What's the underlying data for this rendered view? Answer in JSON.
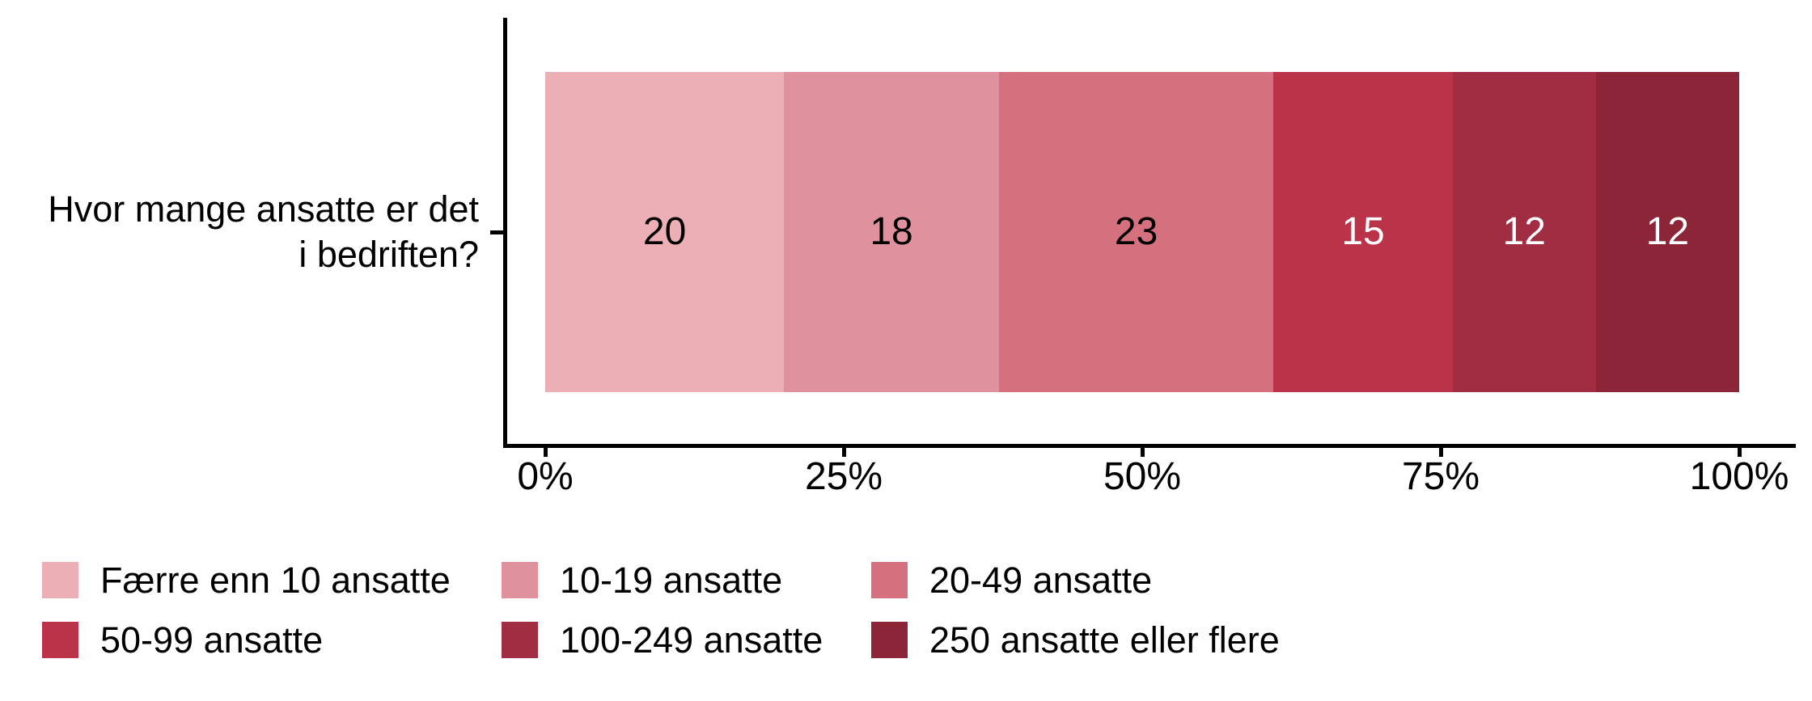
{
  "chart_data": {
    "type": "bar",
    "orientation": "horizontal",
    "stacked": true,
    "title": "",
    "xlabel": "",
    "ylabel": "",
    "grid": false,
    "background": "#FFFFFF",
    "axis_color": "#000000",
    "legend_position": "bottom-left",
    "categories": [
      "Hvor mange ansatte er det i bedriften?"
    ],
    "series": [
      {
        "name": "Færre enn 10 ansatte",
        "values": [
          20
        ],
        "color": "#ECAFB6",
        "label_color": "#000000"
      },
      {
        "name": "10-19 ansatte",
        "values": [
          18
        ],
        "color": "#DF929E",
        "label_color": "#000000"
      },
      {
        "name": "20-49 ansatte",
        "values": [
          23
        ],
        "color": "#D5707E",
        "label_color": "#000000"
      },
      {
        "name": "50-99 ansatte",
        "values": [
          15
        ],
        "color": "#BB3349",
        "label_color": "#FFFFFF"
      },
      {
        "name": "100-249 ansatte",
        "values": [
          12
        ],
        "color": "#A02D41",
        "label_color": "#FFFFFF"
      },
      {
        "name": "250 ansatte eller flere",
        "values": [
          12
        ],
        "color": "#8C2537",
        "label_color": "#FFFFFF"
      }
    ],
    "x_axis": {
      "tick_labels": [
        "0%",
        "25%",
        "50%",
        "75%",
        "100%"
      ],
      "range": [
        0,
        100
      ],
      "unit": "%"
    }
  },
  "category": {
    "lines": [
      "Hvor mange ansatte er det",
      "i bedriften?"
    ]
  }
}
